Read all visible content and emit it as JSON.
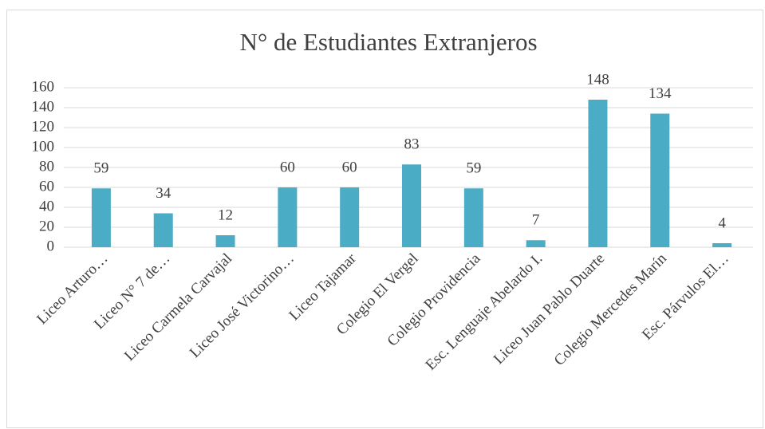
{
  "chart_data": {
    "type": "bar",
    "title": "N° de Estudiantes Extranjeros",
    "categories": [
      "Liceo Arturo…",
      "Liceo N° 7 de…",
      "Liceo Carmela Carvajal",
      "Liceo José Victorino…",
      "Liceo Tajamar",
      "Colegio El Vergel",
      "Colegio Providencia",
      "Esc. Lenguaje Abelardo I.",
      "Liceo Juan Pablo Duarte",
      "Colegio Mercedes Marín",
      "Esc. Párvulos El…"
    ],
    "values": [
      59,
      34,
      12,
      60,
      60,
      83,
      59,
      7,
      148,
      134,
      4
    ],
    "color": "#4bacc6",
    "ylim": [
      0,
      160
    ],
    "yticks": [
      0,
      20,
      40,
      60,
      80,
      100,
      120,
      140,
      160
    ],
    "grid": true
  }
}
